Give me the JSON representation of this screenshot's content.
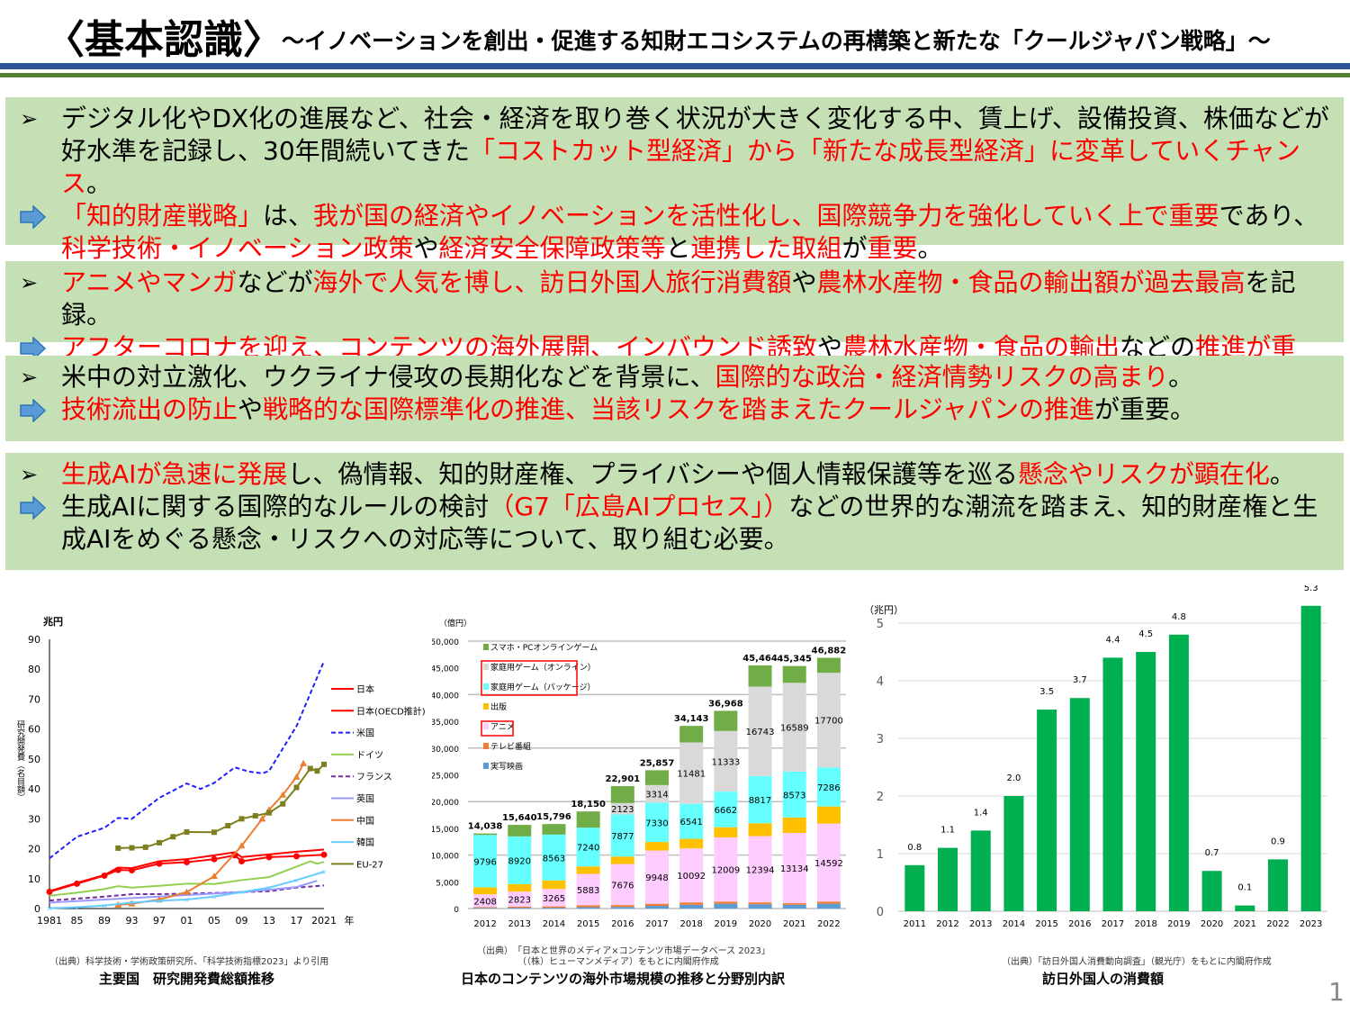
{
  "header": {
    "title": "〈基本認識〉",
    "subtitle": "～イノベーションを創出・促進する知財エコシステムの再構築と新たな「クールジャパン戦略」～"
  },
  "colors": {
    "box_bg": "#c5e0b4",
    "emphasis": "#ff0000",
    "rule_blue": "#2f5597",
    "rule_green": "#548235",
    "arrow": "#5b9bd5"
  },
  "boxes": [
    {
      "bullet": [
        {
          "t": "デジタル化やDX化の進展など、社会・経済を取り巻く状況が大きく変化する中、賃上げ、設備投資、株価などが好水準を記録し、30年間続いてきた",
          "red": false
        },
        {
          "t": "「コストカット型経済」から「新たな成長型経済」に変革していくチャンス",
          "red": true
        },
        {
          "t": "。",
          "red": false
        }
      ],
      "arrow": [
        {
          "t": "「知的財産戦略」",
          "red": true
        },
        {
          "t": "は、",
          "red": false
        },
        {
          "t": "我が国の経済やイノベーションを活性化し、国際競争力を強化していく上で重要",
          "red": true
        },
        {
          "t": "であり、",
          "red": false
        },
        {
          "t": "科学技術・イノベーション政策",
          "red": true
        },
        {
          "t": "や",
          "red": false
        },
        {
          "t": "経済安全保障政策等",
          "red": true
        },
        {
          "t": "と",
          "red": false
        },
        {
          "t": "連携した取組",
          "red": true
        },
        {
          "t": "が",
          "red": false
        },
        {
          "t": "重要",
          "red": true
        },
        {
          "t": "。",
          "red": false
        }
      ]
    },
    {
      "bullet": [
        {
          "t": "アニメやマンガ",
          "red": true
        },
        {
          "t": "などが",
          "red": false
        },
        {
          "t": "海外で人気を博し、訪日外国人旅行消費額",
          "red": true
        },
        {
          "t": "や",
          "red": false
        },
        {
          "t": "農林水産物・食品の輸出額が過去最高",
          "red": true
        },
        {
          "t": "を記録。",
          "red": false
        }
      ],
      "arrow": [
        {
          "t": "アフターコロナを迎え、コンテンツの海外展開、インバウンド誘致",
          "red": true
        },
        {
          "t": "や",
          "red": false
        },
        {
          "t": "農林水産物・食品の輸出",
          "red": true
        },
        {
          "t": "などの",
          "red": false
        },
        {
          "t": "推進が重要",
          "red": true
        },
        {
          "t": "。",
          "red": false
        }
      ]
    },
    {
      "bullet": [
        {
          "t": "米中の対立激化、ウクライナ侵攻の長期化などを背景に、",
          "red": false
        },
        {
          "t": "国際的な政治・経済情勢リスクの高まり",
          "red": true
        },
        {
          "t": "。",
          "red": false
        }
      ],
      "arrow": [
        {
          "t": "技術流出の防止",
          "red": true
        },
        {
          "t": "や",
          "red": false
        },
        {
          "t": "戦略的な国際標準化の推進、当該リスクを踏まえたクールジャパンの推進",
          "red": true
        },
        {
          "t": "が重要。",
          "red": false
        }
      ]
    },
    {
      "bullet": [
        {
          "t": "生成AIが急速に発展",
          "red": true
        },
        {
          "t": "し、偽情報、知的財産権、プライバシーや個人情報保護等を巡る",
          "red": false
        },
        {
          "t": "懸念やリスクが顕在化",
          "red": true
        },
        {
          "t": "。",
          "red": false
        }
      ],
      "arrow": [
        {
          "t": "生成AIに関する国際的なルールの検討",
          "red": false
        },
        {
          "t": "（G7「広島AIプロセス」）",
          "red": true
        },
        {
          "t": "などの世界的な潮流を踏まえ、知的財産権と生成AIをめぐる懸念・リスクへの対応等について、取り組む必要。",
          "red": false
        }
      ]
    }
  ],
  "chart_data": [
    {
      "type": "line",
      "title": "主要国　研究開発費総額推移",
      "source": "（出典）科学技術・学術政策研究所、「科学技術指標2023」より引用",
      "yunit": "兆円",
      "ylabel": "研究開発費（名目額）",
      "xunit": "年",
      "ylim": [
        0,
        90
      ],
      "yticks": [
        0,
        10,
        20,
        30,
        40,
        50,
        60,
        70,
        80,
        90
      ],
      "xticks": [
        "1981",
        "85",
        "89",
        "93",
        "97",
        "01",
        "05",
        "09",
        "13",
        "17",
        "2021"
      ],
      "xlim": [
        1981,
        2021
      ],
      "legend": "right",
      "series": [
        {
          "name": "日本",
          "color": "#ff0000",
          "dash": false,
          "marker": "none",
          "points": [
            [
              1981,
              5.8
            ],
            [
              1985,
              8.6
            ],
            [
              1989,
              11.2
            ],
            [
              1991,
              13.7
            ],
            [
              1993,
              13.5
            ],
            [
              1997,
              15.8
            ],
            [
              2001,
              16.5
            ],
            [
              2005,
              17.8
            ],
            [
              2008,
              18.8
            ],
            [
              2009,
              17.2
            ],
            [
              2013,
              18.1
            ],
            [
              2017,
              19
            ],
            [
              2021,
              19.7
            ]
          ]
        },
        {
          "name": "日本(OECD推計)",
          "color": "#ff0000",
          "dash": false,
          "marker": "circle",
          "points": [
            [
              1981,
              5.6
            ],
            [
              1985,
              8.3
            ],
            [
              1989,
              11
            ],
            [
              1991,
              12.9
            ],
            [
              1993,
              12.8
            ],
            [
              1997,
              15
            ],
            [
              2001,
              15.5
            ],
            [
              2005,
              16.5
            ],
            [
              2008,
              17.8
            ],
            [
              2009,
              15.8
            ],
            [
              2013,
              17.2
            ],
            [
              2017,
              17.5
            ],
            [
              2021,
              18
            ]
          ]
        },
        {
          "name": "米国",
          "color": "#1f1fff",
          "dash": true,
          "marker": "none",
          "points": [
            [
              1981,
              16.8
            ],
            [
              1985,
              24
            ],
            [
              1989,
              27
            ],
            [
              1991,
              30.3
            ],
            [
              1993,
              30
            ],
            [
              1997,
              37
            ],
            [
              2001,
              41.8
            ],
            [
              2003,
              40
            ],
            [
              2005,
              42
            ],
            [
              2008,
              47.2
            ],
            [
              2010,
              45.8
            ],
            [
              2012,
              45.2
            ],
            [
              2013,
              46
            ],
            [
              2017,
              61
            ],
            [
              2021,
              82.7
            ]
          ]
        },
        {
          "name": "ドイツ",
          "color": "#92d050",
          "dash": false,
          "marker": "none",
          "points": [
            [
              1981,
              4.3
            ],
            [
              1985,
              5.3
            ],
            [
              1989,
              6.5
            ],
            [
              1991,
              7.5
            ],
            [
              1993,
              7
            ],
            [
              1997,
              7.6
            ],
            [
              2001,
              8.3
            ],
            [
              2005,
              8.2
            ],
            [
              2009,
              9.5
            ],
            [
              2013,
              10.5
            ],
            [
              2017,
              14
            ],
            [
              2019,
              15.8
            ],
            [
              2020,
              15
            ],
            [
              2021,
              15.6
            ]
          ]
        },
        {
          "name": "フランス",
          "color": "#7030a0",
          "dash": true,
          "marker": "none",
          "points": [
            [
              1981,
              2.7
            ],
            [
              1985,
              3.3
            ],
            [
              1989,
              4
            ],
            [
              1993,
              4.8
            ],
            [
              1997,
              4.8
            ],
            [
              2001,
              5
            ],
            [
              2005,
              5.2
            ],
            [
              2009,
              5.5
            ],
            [
              2013,
              5.8
            ],
            [
              2017,
              7
            ],
            [
              2021,
              7.7
            ]
          ]
        },
        {
          "name": "英国",
          "color": "#9999ff",
          "dash": false,
          "marker": "none",
          "points": [
            [
              1981,
              2
            ],
            [
              1985,
              2.5
            ],
            [
              1989,
              3
            ],
            [
              1993,
              3.5
            ],
            [
              1997,
              4
            ],
            [
              2001,
              4.5
            ],
            [
              2005,
              5
            ],
            [
              2009,
              5.5
            ],
            [
              2013,
              6.3
            ],
            [
              2017,
              7.2
            ],
            [
              2020,
              9.3
            ]
          ]
        },
        {
          "name": "中国",
          "color": "#ed7d31",
          "dash": false,
          "marker": "triangle",
          "points": [
            [
              1991,
              1.2
            ],
            [
              1993,
              1.6
            ],
            [
              1997,
              3
            ],
            [
              2001,
              5.5
            ],
            [
              2005,
              10.8
            ],
            [
              2009,
              21
            ],
            [
              2012,
              30
            ],
            [
              2013,
              33
            ],
            [
              2015,
              38
            ],
            [
              2017,
              44
            ],
            [
              2018,
              48.5
            ]
          ]
        },
        {
          "name": "韓国",
          "color": "#66ccff",
          "dash": false,
          "marker": "cross",
          "points": [
            [
              1981,
              0.1
            ],
            [
              1985,
              0.4
            ],
            [
              1989,
              1
            ],
            [
              1993,
              2
            ],
            [
              1997,
              2.6
            ],
            [
              2001,
              3
            ],
            [
              2005,
              4
            ],
            [
              2009,
              5.5
            ],
            [
              2013,
              7
            ],
            [
              2017,
              9.5
            ],
            [
              2021,
              12.3
            ]
          ]
        },
        {
          "name": "EU-27",
          "color": "#7f7f1f",
          "dash": false,
          "marker": "square",
          "points": [
            [
              1991,
              20.2
            ],
            [
              1993,
              20.3
            ],
            [
              1995,
              20.5
            ],
            [
              1997,
              22
            ],
            [
              1999,
              24
            ],
            [
              2001,
              25.6
            ],
            [
              2005,
              25.5
            ],
            [
              2007,
              27.7
            ],
            [
              2009,
              30
            ],
            [
              2011,
              31
            ],
            [
              2013,
              32
            ],
            [
              2015,
              35
            ],
            [
              2017,
              40.5
            ],
            [
              2019,
              46.8
            ],
            [
              2020,
              46
            ],
            [
              2021,
              48.2
            ]
          ]
        }
      ]
    },
    {
      "type": "bar",
      "stacked": true,
      "title": "日本のコンテンツの海外市場規模の推移と分野別内訳",
      "source": [
        "（出典）　「日本と世界のメディア×コンテンツ市場データベース 2023」",
        "（（株）ヒューマンメディア）をもとに内閣府作成"
      ],
      "yunit": "（億円）",
      "ylim": [
        0,
        50000
      ],
      "yticks": [
        "0",
        "5,000",
        "10,000",
        "15,000",
        "20,000",
        "25,000",
        "30,000",
        "35,000",
        "40,000",
        "45,000",
        "50,000"
      ],
      "categories": [
        "2012",
        "2013",
        "2014",
        "2015",
        "2016",
        "2017",
        "2018",
        "2019",
        "2020",
        "2021",
        "2022"
      ],
      "totals": [
        "14,038",
        "15,640",
        "15,796",
        "18,150",
        "22,901",
        "25,857",
        "34,143",
        "36,968",
        "45,464",
        "45,345",
        "46,882"
      ],
      "legend": "top-left",
      "highlighted_legend": [
        "家庭用ゲーム（オンライン）",
        "家庭用ゲーム（パッケージ）",
        "アニメ"
      ],
      "series": [
        {
          "name": "実写映画",
          "color": "#5b9bd5",
          "labeled": false,
          "values": [
            100,
            150,
            150,
            250,
            300,
            500,
            700,
            900,
            800,
            700,
            900
          ]
        },
        {
          "name": "テレビ番組",
          "color": "#ed7d31",
          "labeled": false,
          "values": [
            150,
            200,
            250,
            350,
            350,
            400,
            450,
            400,
            350,
            300,
            400
          ]
        },
        {
          "name": "アニメ",
          "color": "#ffccff",
          "labeled": true,
          "values": [
            2408,
            2823,
            3265,
            5883,
            7676,
            9948,
            10092,
            12009,
            12394,
            13134,
            14592
          ]
        },
        {
          "name": "出版",
          "color": "#ffc000",
          "labeled": false,
          "values": [
            1300,
            1400,
            1600,
            1400,
            1400,
            1600,
            1800,
            1900,
            2400,
            2900,
            3200
          ]
        },
        {
          "name": "家庭用ゲーム（パッケージ）",
          "color": "#66ffff",
          "labeled": true,
          "values": [
            9796,
            8920,
            8563,
            7240,
            7877,
            7330,
            6541,
            6662,
            8817,
            8573,
            7286
          ]
        },
        {
          "name": "家庭用ゲーム（オンライン）",
          "color": "#d9d9d9",
          "labeled": true,
          "values": [
            0,
            0,
            0,
            0,
            2123,
            3314,
            11481,
            11333,
            16743,
            16589,
            17700
          ]
        },
        {
          "name": "スマホ・PCオンラインゲーム",
          "color": "#70ad47",
          "labeled": false,
          "values": [
            284,
            2147,
            1968,
            3027,
            3175,
            2765,
            3079,
            3764,
            3960,
            3149,
            2804
          ]
        }
      ]
    },
    {
      "type": "bar",
      "title": "訪日外国人の消費額",
      "source": "（出典）「訪日外国人消費動向調査」（観光庁）をもとに内閣府作成",
      "yunit": "（兆円）",
      "ylim": [
        0,
        5.5
      ],
      "yticks": [
        "0",
        "1",
        "2",
        "3",
        "4",
        "5"
      ],
      "color": "#00b050",
      "categories": [
        "2011",
        "2012",
        "2013",
        "2014",
        "2015",
        "2016",
        "2017",
        "2018",
        "2019",
        "2020",
        "2021",
        "2022",
        "2023"
      ],
      "values": [
        0.8,
        1.1,
        1.4,
        2.0,
        3.5,
        3.7,
        4.4,
        4.5,
        4.8,
        0.7,
        0.1,
        0.9,
        5.3
      ],
      "labels": [
        "0.8",
        "1.1",
        "1.4",
        "2.0",
        "3.5",
        "3.7",
        "4.4",
        "4.5",
        "4.8",
        "0.7",
        "0.1",
        "0.9",
        "5.3"
      ]
    }
  ],
  "page_number": "1"
}
